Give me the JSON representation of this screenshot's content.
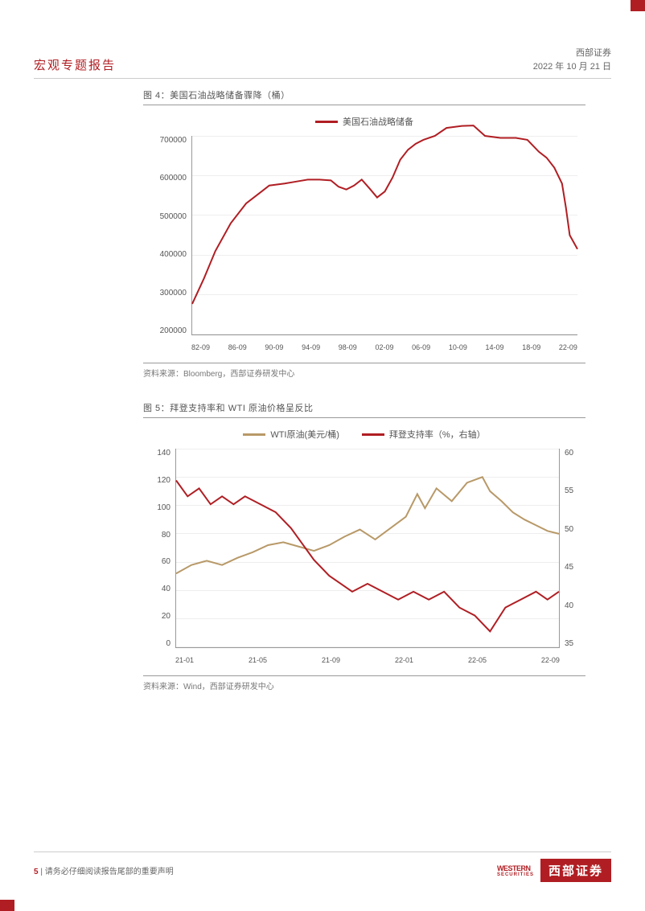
{
  "header": {
    "report_type": "宏观专题报告",
    "company": "西部证券",
    "date": "2022 年 10 月 21 日"
  },
  "figure4": {
    "title": "图 4：美国石油战略储备骤降（桶）",
    "legend_label": "美国石油战略储备",
    "source": "资料来源：Bloomberg，西部证券研发中心",
    "type": "line",
    "line_color": "#b01e23",
    "line_width": 2,
    "background_color": "#ffffff",
    "grid_color": "#eeeeee",
    "ylim": [
      200000,
      700000
    ],
    "ytick_step": 100000,
    "y_ticks": [
      "700000",
      "600000",
      "500000",
      "400000",
      "300000",
      "200000"
    ],
    "x_ticks": [
      "82-09",
      "86-09",
      "90-09",
      "94-09",
      "98-09",
      "02-09",
      "06-09",
      "10-09",
      "14-09",
      "18-09",
      "22-09"
    ],
    "data": [
      {
        "x": 0.0,
        "y": 277000
      },
      {
        "x": 0.03,
        "y": 340000
      },
      {
        "x": 0.06,
        "y": 410000
      },
      {
        "x": 0.1,
        "y": 480000
      },
      {
        "x": 0.14,
        "y": 530000
      },
      {
        "x": 0.18,
        "y": 560000
      },
      {
        "x": 0.2,
        "y": 575000
      },
      {
        "x": 0.24,
        "y": 580000
      },
      {
        "x": 0.27,
        "y": 585000
      },
      {
        "x": 0.3,
        "y": 590000
      },
      {
        "x": 0.33,
        "y": 590000
      },
      {
        "x": 0.36,
        "y": 588000
      },
      {
        "x": 0.38,
        "y": 572000
      },
      {
        "x": 0.4,
        "y": 565000
      },
      {
        "x": 0.42,
        "y": 575000
      },
      {
        "x": 0.44,
        "y": 590000
      },
      {
        "x": 0.46,
        "y": 568000
      },
      {
        "x": 0.48,
        "y": 545000
      },
      {
        "x": 0.5,
        "y": 560000
      },
      {
        "x": 0.52,
        "y": 595000
      },
      {
        "x": 0.54,
        "y": 640000
      },
      {
        "x": 0.56,
        "y": 665000
      },
      {
        "x": 0.58,
        "y": 680000
      },
      {
        "x": 0.6,
        "y": 690000
      },
      {
        "x": 0.63,
        "y": 700000
      },
      {
        "x": 0.66,
        "y": 720000
      },
      {
        "x": 0.7,
        "y": 725000
      },
      {
        "x": 0.73,
        "y": 726000
      },
      {
        "x": 0.76,
        "y": 700000
      },
      {
        "x": 0.8,
        "y": 695000
      },
      {
        "x": 0.84,
        "y": 695000
      },
      {
        "x": 0.87,
        "y": 690000
      },
      {
        "x": 0.9,
        "y": 660000
      },
      {
        "x": 0.92,
        "y": 645000
      },
      {
        "x": 0.94,
        "y": 620000
      },
      {
        "x": 0.96,
        "y": 580000
      },
      {
        "x": 0.97,
        "y": 520000
      },
      {
        "x": 0.98,
        "y": 450000
      },
      {
        "x": 1.0,
        "y": 415000
      }
    ]
  },
  "figure5": {
    "title": "图 5：拜登支持率和 WTI 原油价格呈反比",
    "legend_wti": "WTI原油(美元/桶)",
    "legend_biden": "拜登支持率（%，右轴）",
    "source": "资料来源：Wind，西部证券研发中心",
    "type": "line_dual_axis",
    "wti_color": "#b89968",
    "biden_color": "#b01e23",
    "line_width": 2,
    "background_color": "#ffffff",
    "grid_color": "#eeeeee",
    "y_left_lim": [
      0,
      140
    ],
    "y_left_step": 20,
    "y_left_ticks": [
      "140",
      "120",
      "100",
      "80",
      "60",
      "40",
      "20",
      "0"
    ],
    "y_right_lim": [
      35,
      60
    ],
    "y_right_step": 5,
    "y_right_ticks": [
      "60",
      "55",
      "50",
      "45",
      "40",
      "35"
    ],
    "x_ticks": [
      "21-01",
      "21-05",
      "21-09",
      "22-01",
      "22-05",
      "22-09"
    ],
    "wti_data": [
      {
        "x": 0.0,
        "y": 52
      },
      {
        "x": 0.04,
        "y": 58
      },
      {
        "x": 0.08,
        "y": 61
      },
      {
        "x": 0.12,
        "y": 58
      },
      {
        "x": 0.16,
        "y": 63
      },
      {
        "x": 0.2,
        "y": 67
      },
      {
        "x": 0.24,
        "y": 72
      },
      {
        "x": 0.28,
        "y": 74
      },
      {
        "x": 0.32,
        "y": 71
      },
      {
        "x": 0.36,
        "y": 68
      },
      {
        "x": 0.4,
        "y": 72
      },
      {
        "x": 0.44,
        "y": 78
      },
      {
        "x": 0.48,
        "y": 83
      },
      {
        "x": 0.52,
        "y": 76
      },
      {
        "x": 0.56,
        "y": 84
      },
      {
        "x": 0.6,
        "y": 92
      },
      {
        "x": 0.63,
        "y": 108
      },
      {
        "x": 0.65,
        "y": 98
      },
      {
        "x": 0.68,
        "y": 112
      },
      {
        "x": 0.72,
        "y": 103
      },
      {
        "x": 0.76,
        "y": 116
      },
      {
        "x": 0.8,
        "y": 120
      },
      {
        "x": 0.82,
        "y": 110
      },
      {
        "x": 0.85,
        "y": 103
      },
      {
        "x": 0.88,
        "y": 95
      },
      {
        "x": 0.91,
        "y": 90
      },
      {
        "x": 0.94,
        "y": 86
      },
      {
        "x": 0.97,
        "y": 82
      },
      {
        "x": 1.0,
        "y": 80
      }
    ],
    "biden_data": [
      {
        "x": 0.0,
        "y": 56
      },
      {
        "x": 0.03,
        "y": 54
      },
      {
        "x": 0.06,
        "y": 55
      },
      {
        "x": 0.09,
        "y": 53
      },
      {
        "x": 0.12,
        "y": 54
      },
      {
        "x": 0.15,
        "y": 53
      },
      {
        "x": 0.18,
        "y": 54
      },
      {
        "x": 0.22,
        "y": 53
      },
      {
        "x": 0.26,
        "y": 52
      },
      {
        "x": 0.3,
        "y": 50
      },
      {
        "x": 0.33,
        "y": 48
      },
      {
        "x": 0.36,
        "y": 46
      },
      {
        "x": 0.4,
        "y": 44
      },
      {
        "x": 0.43,
        "y": 43
      },
      {
        "x": 0.46,
        "y": 42
      },
      {
        "x": 0.5,
        "y": 43
      },
      {
        "x": 0.54,
        "y": 42
      },
      {
        "x": 0.58,
        "y": 41
      },
      {
        "x": 0.62,
        "y": 42
      },
      {
        "x": 0.66,
        "y": 41
      },
      {
        "x": 0.7,
        "y": 42
      },
      {
        "x": 0.74,
        "y": 40
      },
      {
        "x": 0.78,
        "y": 39
      },
      {
        "x": 0.82,
        "y": 37
      },
      {
        "x": 0.86,
        "y": 40
      },
      {
        "x": 0.9,
        "y": 41
      },
      {
        "x": 0.94,
        "y": 42
      },
      {
        "x": 0.97,
        "y": 41
      },
      {
        "x": 1.0,
        "y": 42
      }
    ]
  },
  "footer": {
    "page_num": "5",
    "separator": "|",
    "disclaimer": "请务必仔细阅读报告尾部的重要声明",
    "brand_en": "WESTERN",
    "brand_sub": "SECURITIES",
    "brand_cn": "西部证券"
  }
}
